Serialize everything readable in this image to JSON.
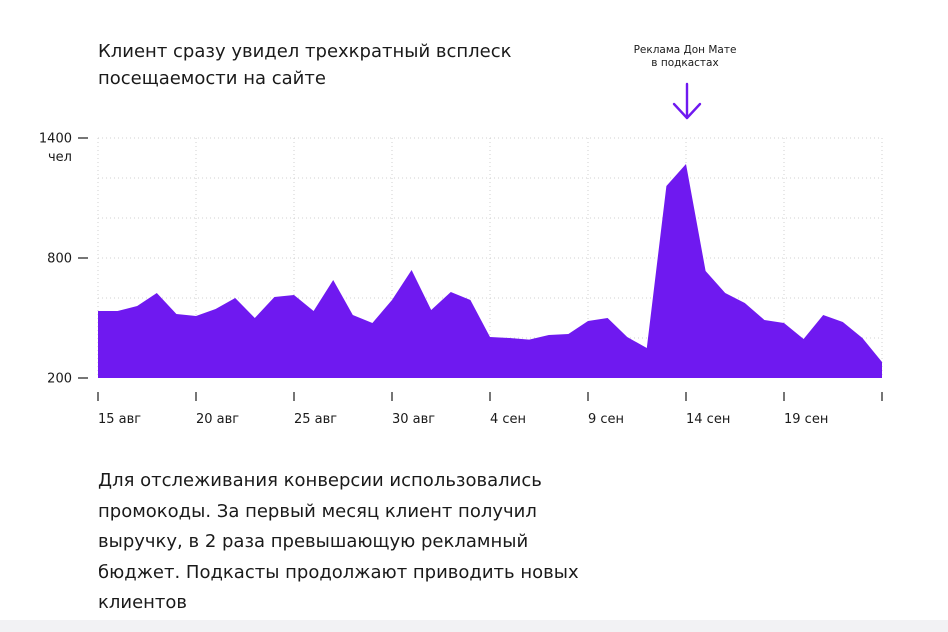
{
  "headline": [
    "Клиент сразу увидел трехкратный всплеск",
    "посещаемости на сайте"
  ],
  "callout": [
    "Реклама Дон Мате",
    "в подкастах"
  ],
  "body_text": [
    "Для отслеживания конверсии использовались",
    "промокоды. За первый месяц клиент получил",
    "выручку, в 2 раза превышающую рекламный",
    "бюджет. Подкасты продолжают приводить новых",
    "клиентов"
  ],
  "colors": {
    "area": "#6f19f0",
    "arrow": "#6f19f0",
    "grid": "#d0d0d0",
    "axis": "#1a1a1a"
  },
  "chart_data": {
    "type": "area",
    "ylim": [
      200,
      1400
    ],
    "yticks": [
      {
        "value": 200,
        "label": "200"
      },
      {
        "value": 800,
        "label": "800"
      },
      {
        "value": 1400,
        "label": "1400",
        "unit": "чел"
      }
    ],
    "xlabels": [
      {
        "index": 0,
        "label": "15 авг"
      },
      {
        "index": 5,
        "label": "20 авг"
      },
      {
        "index": 10,
        "label": "25 авг"
      },
      {
        "index": 15,
        "label": "30 авг"
      },
      {
        "index": 20,
        "label": "4 сен"
      },
      {
        "index": 25,
        "label": "9 сен"
      },
      {
        "index": 30,
        "label": "14 сен"
      },
      {
        "index": 35,
        "label": "19 сен"
      },
      {
        "index": 40,
        "label": ""
      }
    ],
    "x": [
      "15 авг",
      "16 авг",
      "17 авг",
      "18 авг",
      "19 авг",
      "20 авг",
      "21 авг",
      "22 авг",
      "23 авг",
      "24 авг",
      "25 авг",
      "26 авг",
      "27 авг",
      "28 авг",
      "29 авг",
      "30 авг",
      "31 авг",
      "1 сен",
      "2 сен",
      "3 сен",
      "4 сен",
      "5 сен",
      "6 сен",
      "7 сен",
      "8 сен",
      "9 сен",
      "10 сен",
      "11 сен",
      "12 сен",
      "13 сен",
      "14 сен",
      "15 сен",
      "16 сен",
      "17 сен",
      "18 сен",
      "19 сен",
      "20 сен",
      "21 сен",
      "22 сен",
      "23 сен",
      "24 сен"
    ],
    "values": [
      535,
      535,
      560,
      625,
      520,
      510,
      545,
      600,
      500,
      605,
      615,
      535,
      690,
      515,
      475,
      590,
      740,
      540,
      630,
      590,
      405,
      400,
      392,
      415,
      420,
      485,
      500,
      405,
      350,
      1160,
      1270,
      735,
      625,
      575,
      490,
      475,
      395,
      515,
      480,
      400,
      280
    ],
    "grid": true
  }
}
